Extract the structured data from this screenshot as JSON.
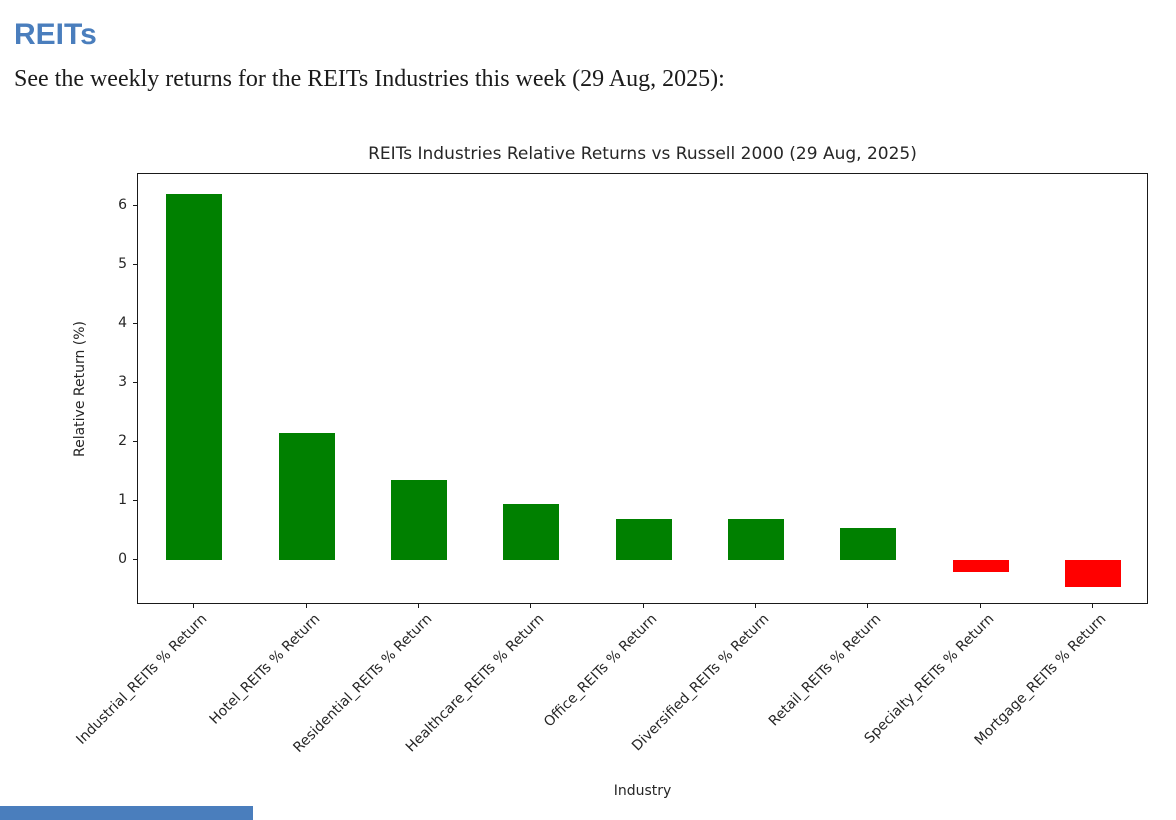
{
  "page": {
    "heading": "REITs",
    "intro": "See the weekly returns for the REITs Industries this week (29 Aug, 2025):",
    "accent_color": "#4a7ebd"
  },
  "chart_data": {
    "type": "bar",
    "title": "REITs Industries Relative Returns vs Russell 2000 (29 Aug, 2025)",
    "xlabel": "Industry",
    "ylabel": "Relative Return (%)",
    "categories": [
      "Industrial_REITs % Return",
      "Hotel_REITs % Return",
      "Residential_REITs % Return",
      "Healthcare_REITs % Return",
      "Office_REITs % Return",
      "Diversified_REITs % Return",
      "Retail_REITs % Return",
      "Specialty_REITs % Return",
      "Mortgage_REITs % Return"
    ],
    "values": [
      6.2,
      2.15,
      1.35,
      0.95,
      0.7,
      0.7,
      0.55,
      -0.2,
      -0.45
    ],
    "positive_color": "#008000",
    "negative_color": "#ff0000",
    "yticks": [
      0,
      1,
      2,
      3,
      4,
      5,
      6
    ],
    "ylim": [
      -0.76,
      6.54
    ],
    "grid": false,
    "legend_position": "none",
    "x_tick_rotation_deg": 45
  }
}
